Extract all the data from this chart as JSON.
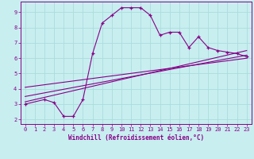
{
  "xlabel": "Windchill (Refroidissement éolien,°C)",
  "background_color": "#c8eef0",
  "grid_color": "#aadddd",
  "line_color": "#880088",
  "spine_color": "#880088",
  "xlim": [
    -0.5,
    23.5
  ],
  "ylim": [
    1.7,
    9.7
  ],
  "xticks": [
    0,
    1,
    2,
    3,
    4,
    5,
    6,
    7,
    8,
    9,
    10,
    11,
    12,
    13,
    14,
    15,
    16,
    17,
    18,
    19,
    20,
    21,
    22,
    23
  ],
  "yticks": [
    2,
    3,
    4,
    5,
    6,
    7,
    8,
    9
  ],
  "tick_fontsize": 5.0,
  "xlabel_fontsize": 5.5,
  "line1_x": [
    0,
    2,
    3,
    4,
    5,
    6,
    7,
    8,
    9,
    10,
    11,
    12,
    13,
    14,
    15,
    16,
    17,
    18,
    19,
    20,
    21,
    22,
    23
  ],
  "line1_y": [
    3.0,
    3.3,
    3.1,
    2.2,
    2.2,
    3.3,
    6.3,
    8.3,
    8.8,
    9.3,
    9.3,
    9.3,
    8.8,
    7.5,
    7.7,
    7.7,
    6.7,
    7.4,
    6.7,
    6.5,
    6.4,
    6.3,
    6.1
  ],
  "line2_x": [
    0,
    23
  ],
  "line2_y": [
    3.15,
    6.5
  ],
  "line3_x": [
    0,
    23
  ],
  "line3_y": [
    3.5,
    6.2
  ],
  "line4_x": [
    0,
    23
  ],
  "line4_y": [
    4.1,
    6.0
  ]
}
